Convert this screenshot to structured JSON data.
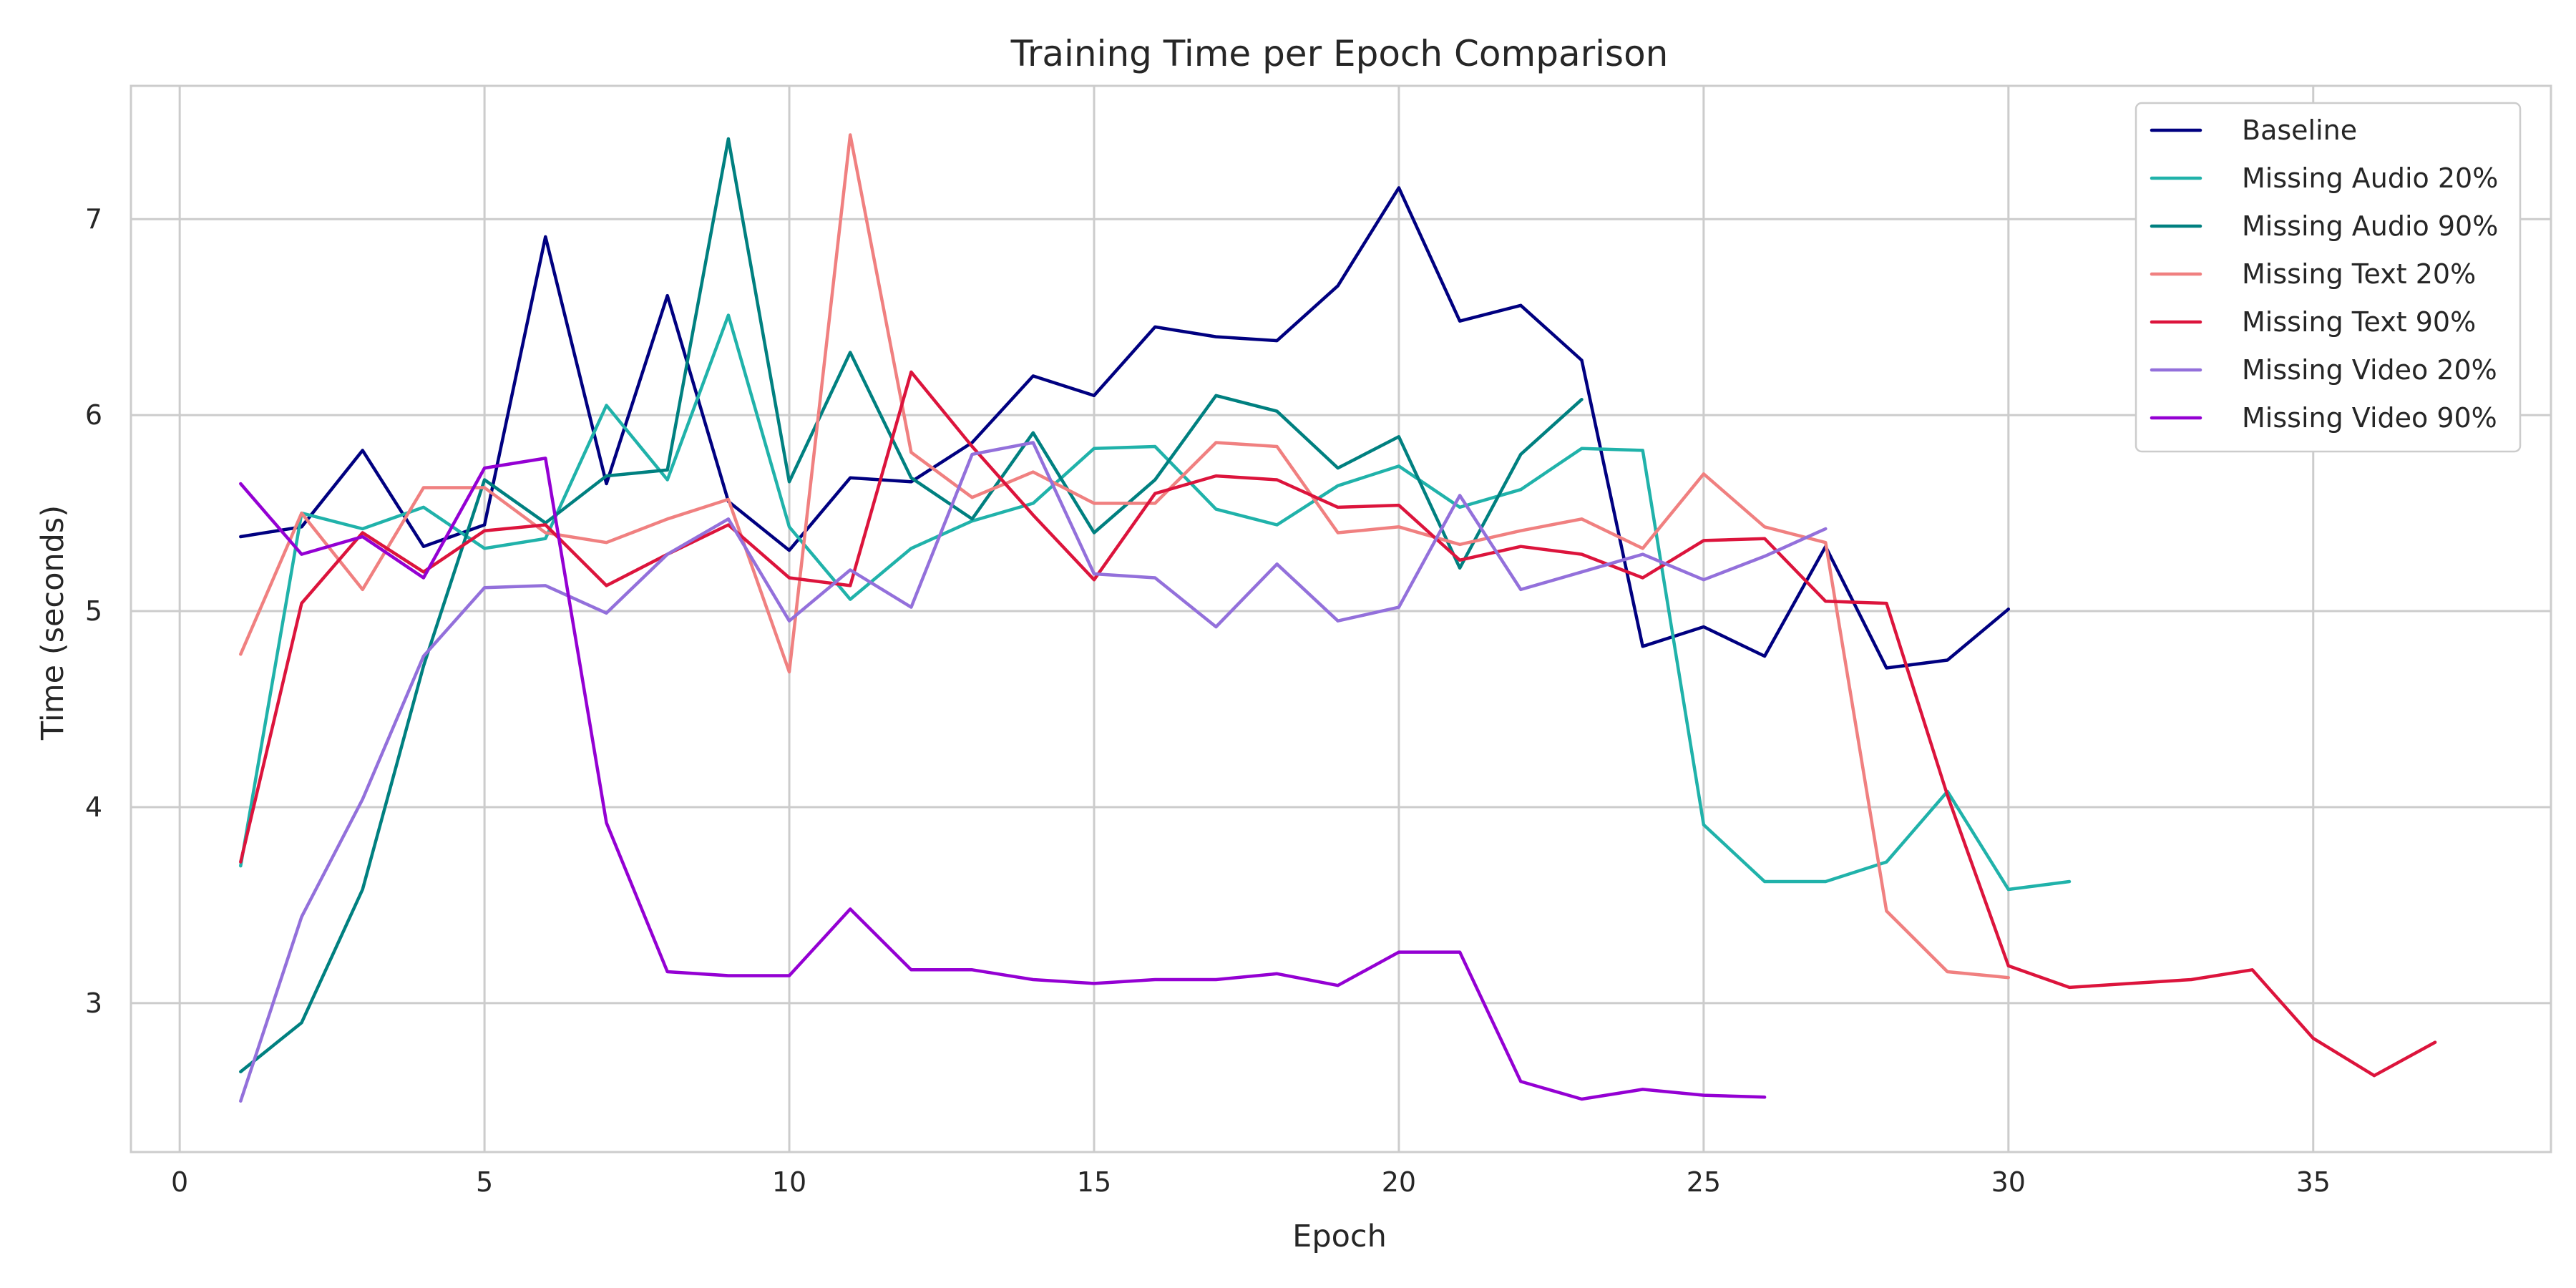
{
  "chart_data": {
    "type": "line",
    "title": "Training Time per Epoch Comparison",
    "xlabel": "Epoch",
    "ylabel": "Time (seconds)",
    "xlim": [
      -0.8,
      38.9
    ],
    "ylim": [
      2.24,
      7.68
    ],
    "xticks": [
      0,
      5,
      10,
      15,
      20,
      25,
      30,
      35
    ],
    "yticks": [
      3,
      4,
      5,
      6,
      7
    ],
    "grid": true,
    "legend_position": "top-right",
    "series": [
      {
        "name": "Baseline",
        "color": "#000080",
        "x": [
          1,
          2,
          3,
          4,
          5,
          6,
          7,
          8,
          9,
          10,
          11,
          12,
          13,
          14,
          15,
          16,
          17,
          18,
          19,
          20,
          21,
          22,
          23,
          24,
          25,
          26,
          27,
          28,
          29,
          30
        ],
        "y": [
          5.38,
          5.43,
          5.82,
          5.33,
          5.44,
          6.91,
          5.65,
          6.61,
          5.56,
          5.31,
          5.68,
          5.66,
          5.86,
          6.2,
          6.1,
          6.45,
          6.4,
          6.38,
          6.66,
          7.16,
          6.48,
          6.56,
          6.28,
          4.82,
          4.92,
          4.77,
          5.33,
          4.71,
          4.75,
          5.01
        ]
      },
      {
        "name": "Missing Audio 20%",
        "color": "#20B2AA",
        "x": [
          1,
          2,
          3,
          4,
          5,
          6,
          7,
          8,
          9,
          10,
          11,
          12,
          13,
          14,
          15,
          16,
          17,
          18,
          19,
          20,
          21,
          22,
          23,
          24,
          25,
          26,
          27,
          28,
          29,
          30,
          31
        ],
        "y": [
          3.7,
          5.5,
          5.42,
          5.53,
          5.32,
          5.37,
          6.05,
          5.67,
          6.51,
          5.43,
          5.06,
          5.32,
          5.46,
          5.55,
          5.83,
          5.84,
          5.52,
          5.44,
          5.64,
          5.74,
          5.53,
          5.62,
          5.83,
          5.82,
          3.91,
          3.62,
          3.62,
          3.72,
          4.08,
          3.58,
          3.62
        ]
      },
      {
        "name": "Missing Audio 90%",
        "color": "#008080",
        "x": [
          1,
          2,
          3,
          4,
          5,
          6,
          7,
          8,
          9,
          10,
          11,
          12,
          13,
          14,
          15,
          16,
          17,
          18,
          19,
          20,
          21,
          22,
          23
        ],
        "y": [
          2.65,
          2.9,
          3.58,
          4.72,
          5.67,
          5.45,
          5.69,
          5.72,
          7.41,
          5.66,
          6.32,
          5.68,
          5.47,
          5.91,
          5.4,
          5.67,
          6.1,
          6.02,
          5.73,
          5.89,
          5.22,
          5.8,
          6.08
        ]
      },
      {
        "name": "Missing Text 20%",
        "color": "#F08080",
        "x": [
          1,
          2,
          3,
          4,
          5,
          6,
          7,
          8,
          9,
          10,
          11,
          12,
          13,
          14,
          15,
          16,
          17,
          18,
          19,
          20,
          21,
          22,
          23,
          24,
          25,
          26,
          27,
          28,
          29,
          30
        ],
        "y": [
          4.78,
          5.5,
          5.11,
          5.63,
          5.63,
          5.4,
          5.35,
          5.47,
          5.57,
          4.69,
          7.43,
          5.81,
          5.58,
          5.71,
          5.55,
          5.55,
          5.86,
          5.84,
          5.4,
          5.43,
          5.34,
          5.41,
          5.47,
          5.32,
          5.7,
          5.43,
          5.35,
          3.47,
          3.16,
          3.13
        ]
      },
      {
        "name": "Missing Text 90%",
        "color": "#DC143C",
        "x": [
          1,
          2,
          3,
          4,
          5,
          6,
          7,
          8,
          9,
          10,
          11,
          12,
          13,
          14,
          15,
          16,
          17,
          18,
          19,
          20,
          21,
          22,
          23,
          24,
          25,
          26,
          27,
          28,
          29,
          30,
          31,
          32,
          33,
          34,
          35,
          36,
          37
        ],
        "y": [
          3.72,
          5.04,
          5.4,
          5.2,
          5.41,
          5.44,
          5.13,
          5.29,
          5.44,
          5.17,
          5.13,
          6.22,
          5.84,
          5.49,
          5.16,
          5.6,
          5.69,
          5.67,
          5.53,
          5.54,
          5.26,
          5.33,
          5.29,
          5.17,
          5.36,
          5.37,
          5.05,
          5.04,
          4.06,
          3.19,
          3.08,
          3.1,
          3.12,
          3.17,
          2.82,
          2.63,
          2.8
        ]
      },
      {
        "name": "Missing Video 20%",
        "color": "#9370DB",
        "x": [
          1,
          2,
          3,
          4,
          5,
          6,
          7,
          8,
          9,
          10,
          11,
          12,
          13,
          14,
          15,
          16,
          17,
          18,
          19,
          20,
          21,
          22,
          23,
          24,
          25,
          26,
          27
        ],
        "y": [
          2.5,
          3.44,
          4.04,
          4.77,
          5.12,
          5.13,
          4.99,
          5.29,
          5.47,
          4.95,
          5.21,
          5.02,
          5.8,
          5.86,
          5.19,
          5.17,
          4.92,
          5.24,
          4.95,
          5.02,
          5.59,
          5.11,
          5.2,
          5.29,
          5.16,
          5.28,
          5.42
        ]
      },
      {
        "name": "Missing Video 90%",
        "color": "#9400D3",
        "x": [
          1,
          2,
          3,
          4,
          5,
          6,
          7,
          8,
          9,
          10,
          11,
          12,
          13,
          14,
          15,
          16,
          17,
          18,
          19,
          20,
          21,
          22,
          23,
          24,
          25,
          26
        ],
        "y": [
          5.65,
          5.29,
          5.38,
          5.17,
          5.73,
          5.78,
          3.92,
          3.16,
          3.14,
          3.14,
          3.48,
          3.17,
          3.17,
          3.12,
          3.1,
          3.12,
          3.12,
          3.15,
          3.09,
          3.26,
          3.26,
          2.6,
          2.51,
          2.56,
          2.53,
          2.52
        ]
      }
    ]
  }
}
